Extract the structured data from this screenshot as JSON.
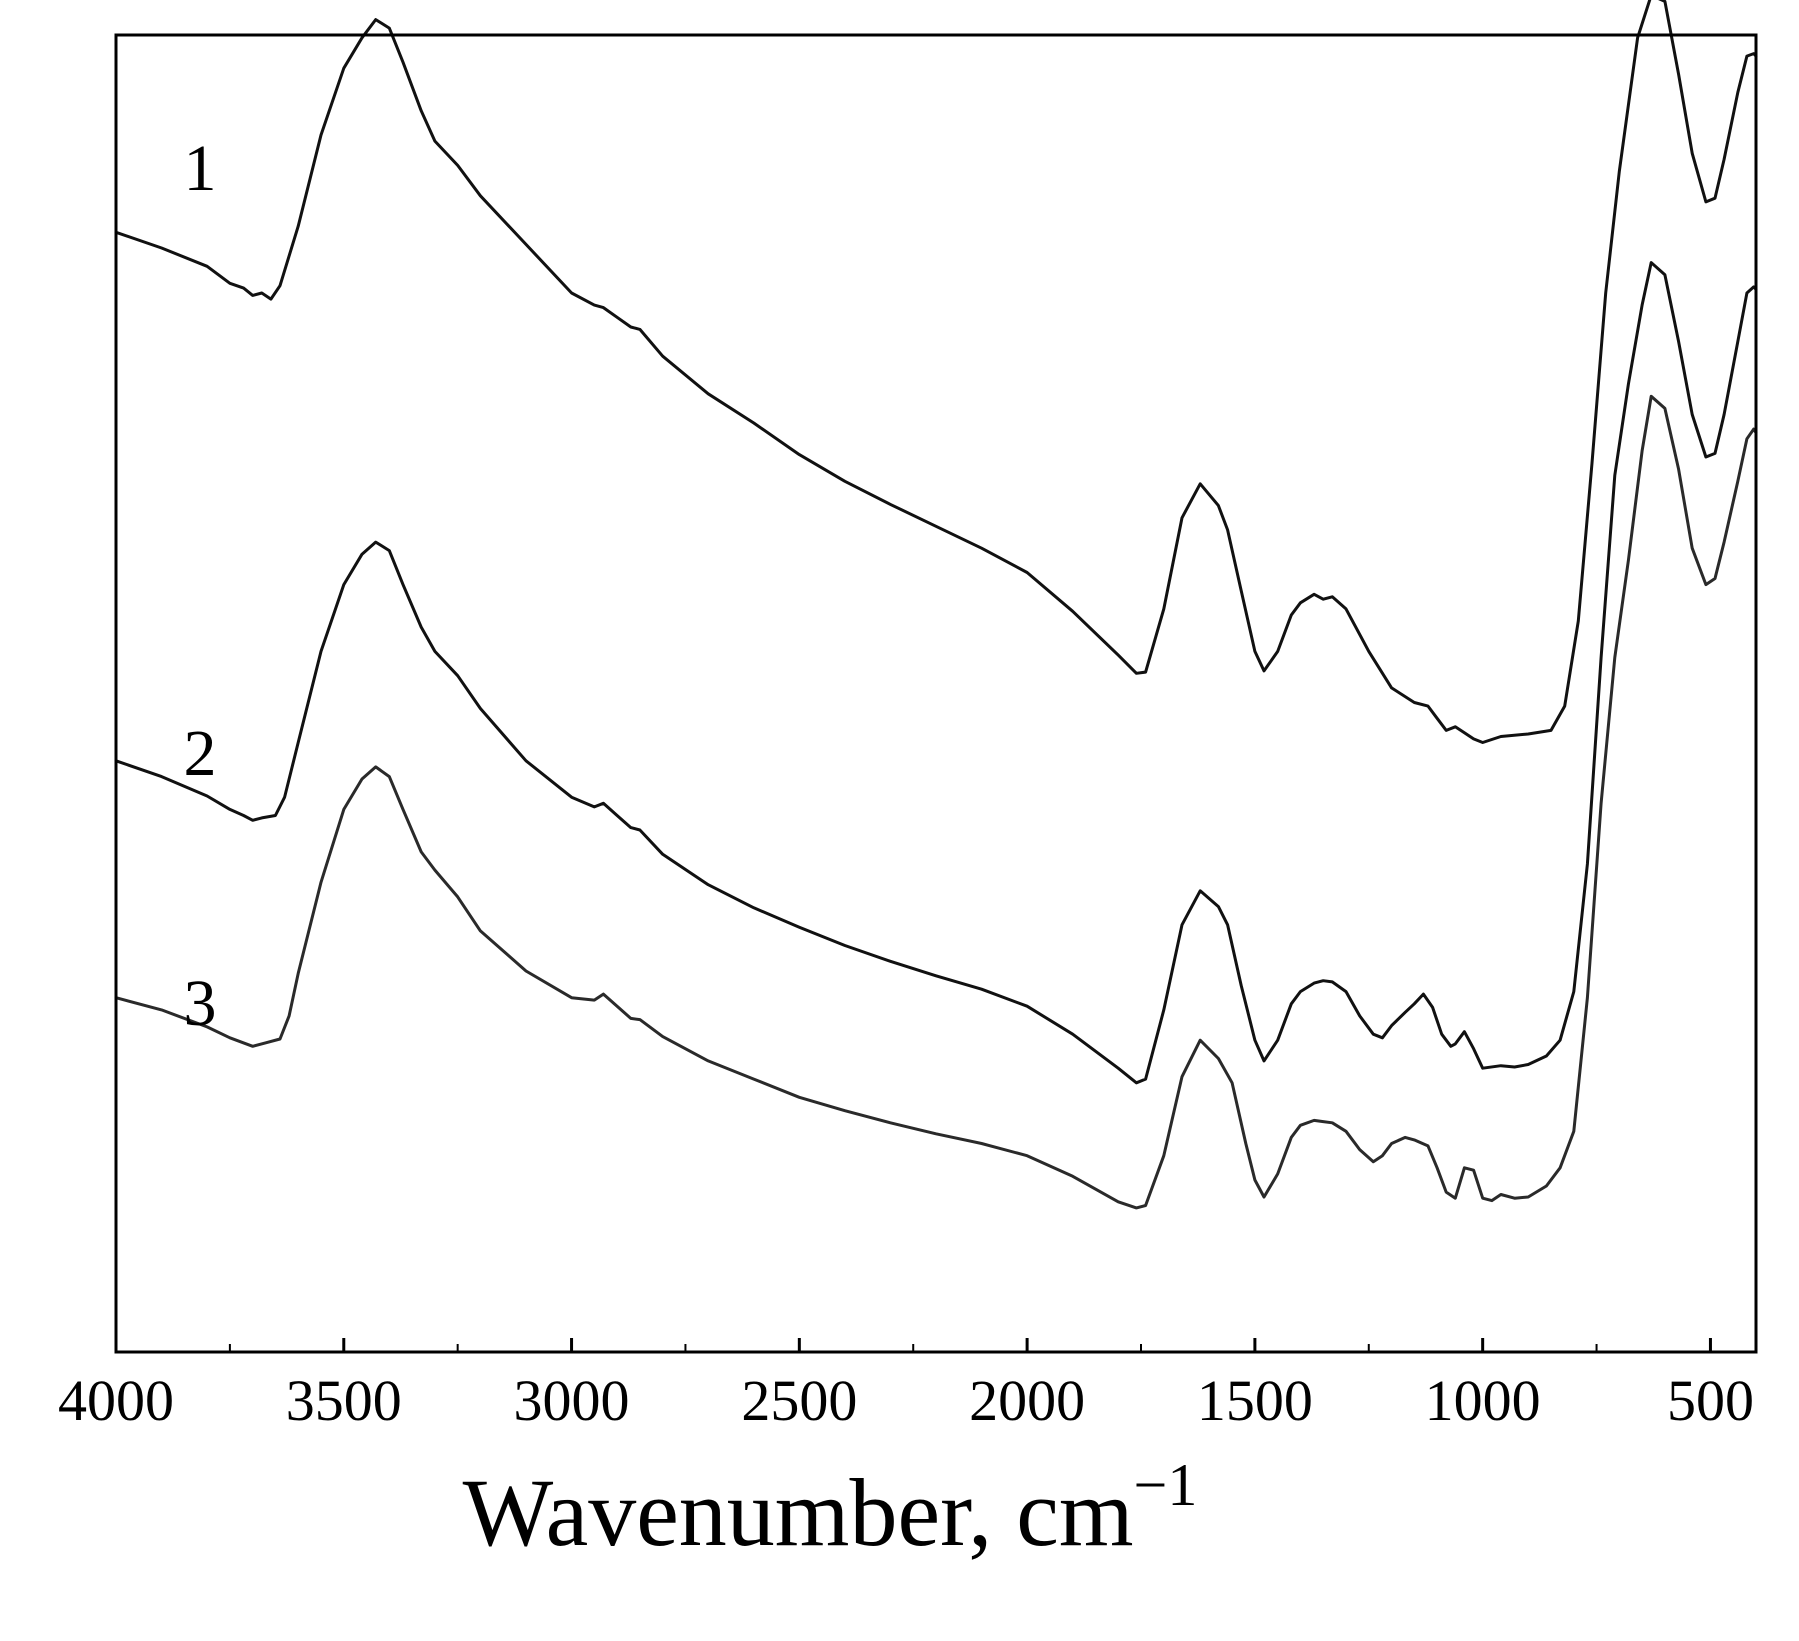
{
  "chart_data": {
    "type": "line",
    "xlabel": "Wavenumber, cm",
    "xlabel_superscript": "−1",
    "ylabel": "",
    "title": "",
    "xlim": [
      4000,
      400
    ],
    "x_reversed": true,
    "ylim": [
      0,
      100
    ],
    "x_ticks_major": [
      4000,
      3500,
      3000,
      2500,
      2000,
      1500,
      1000,
      500
    ],
    "x_tick_labels": [
      "4000",
      "3500",
      "3000",
      "2500",
      "2000",
      "1500",
      "1000",
      "500"
    ],
    "x_ticks_minor": [
      3750,
      3250,
      2750,
      2250,
      1750,
      1250,
      750
    ],
    "y_ticks": [],
    "grid": false,
    "legend": "none",
    "series": [
      {
        "label": "1",
        "color": "#111111",
        "points": [
          [
            4000,
            85.0
          ],
          [
            3900,
            83.7
          ],
          [
            3800,
            82.2
          ],
          [
            3750,
            80.8
          ],
          [
            3720,
            80.4
          ],
          [
            3700,
            79.8
          ],
          [
            3680,
            80.0
          ],
          [
            3660,
            79.5
          ],
          [
            3640,
            80.6
          ],
          [
            3600,
            85.5
          ],
          [
            3550,
            93.0
          ],
          [
            3500,
            98.5
          ],
          [
            3460,
            101.0
          ],
          [
            3430,
            102.5
          ],
          [
            3400,
            101.8
          ],
          [
            3370,
            99.0
          ],
          [
            3330,
            95.0
          ],
          [
            3300,
            92.5
          ],
          [
            3250,
            90.5
          ],
          [
            3200,
            88.0
          ],
          [
            3100,
            84.0
          ],
          [
            3000,
            80.0
          ],
          [
            2950,
            79.0
          ],
          [
            2930,
            78.8
          ],
          [
            2900,
            78.0
          ],
          [
            2870,
            77.2
          ],
          [
            2850,
            77.0
          ],
          [
            2800,
            74.8
          ],
          [
            2700,
            71.7
          ],
          [
            2600,
            69.3
          ],
          [
            2500,
            66.7
          ],
          [
            2400,
            64.5
          ],
          [
            2300,
            62.6
          ],
          [
            2200,
            60.8
          ],
          [
            2100,
            59.0
          ],
          [
            2000,
            57.0
          ],
          [
            1900,
            53.8
          ],
          [
            1800,
            50.2
          ],
          [
            1760,
            48.7
          ],
          [
            1740,
            48.8
          ],
          [
            1700,
            54.0
          ],
          [
            1660,
            61.5
          ],
          [
            1620,
            64.3
          ],
          [
            1580,
            62.5
          ],
          [
            1560,
            60.5
          ],
          [
            1530,
            55.5
          ],
          [
            1500,
            50.5
          ],
          [
            1480,
            48.9
          ],
          [
            1450,
            50.5
          ],
          [
            1420,
            53.5
          ],
          [
            1400,
            54.5
          ],
          [
            1370,
            55.2
          ],
          [
            1350,
            54.8
          ],
          [
            1330,
            55.0
          ],
          [
            1300,
            54.0
          ],
          [
            1250,
            50.5
          ],
          [
            1200,
            47.5
          ],
          [
            1150,
            46.3
          ],
          [
            1120,
            46.0
          ],
          [
            1100,
            45.0
          ],
          [
            1080,
            44.0
          ],
          [
            1060,
            44.3
          ],
          [
            1040,
            43.8
          ],
          [
            1020,
            43.3
          ],
          [
            1000,
            43.0
          ],
          [
            960,
            43.5
          ],
          [
            900,
            43.7
          ],
          [
            850,
            44.0
          ],
          [
            820,
            46.0
          ],
          [
            790,
            53.0
          ],
          [
            760,
            66.0
          ],
          [
            730,
            80.0
          ],
          [
            700,
            90.0
          ],
          [
            660,
            101.0
          ],
          [
            630,
            104.5
          ],
          [
            600,
            104.0
          ],
          [
            570,
            98.0
          ],
          [
            540,
            91.5
          ],
          [
            510,
            87.5
          ],
          [
            490,
            87.8
          ],
          [
            470,
            91.0
          ],
          [
            440,
            96.5
          ],
          [
            420,
            99.5
          ],
          [
            405,
            99.7
          ],
          [
            400,
            99.5
          ]
        ]
      },
      {
        "label": "2",
        "color": "#111111",
        "points": [
          [
            4000,
            41.5
          ],
          [
            3900,
            40.2
          ],
          [
            3800,
            38.6
          ],
          [
            3750,
            37.5
          ],
          [
            3720,
            37.0
          ],
          [
            3700,
            36.6
          ],
          [
            3680,
            36.8
          ],
          [
            3650,
            37.0
          ],
          [
            3630,
            38.5
          ],
          [
            3600,
            43.0
          ],
          [
            3550,
            50.5
          ],
          [
            3500,
            56.0
          ],
          [
            3460,
            58.5
          ],
          [
            3430,
            59.5
          ],
          [
            3400,
            58.8
          ],
          [
            3370,
            56.0
          ],
          [
            3330,
            52.5
          ],
          [
            3300,
            50.5
          ],
          [
            3250,
            48.5
          ],
          [
            3200,
            45.8
          ],
          [
            3100,
            41.5
          ],
          [
            3000,
            38.5
          ],
          [
            2950,
            37.7
          ],
          [
            2930,
            38.0
          ],
          [
            2900,
            37.0
          ],
          [
            2870,
            36.0
          ],
          [
            2850,
            35.8
          ],
          [
            2800,
            33.8
          ],
          [
            2700,
            31.3
          ],
          [
            2600,
            29.4
          ],
          [
            2500,
            27.8
          ],
          [
            2400,
            26.3
          ],
          [
            2300,
            25.0
          ],
          [
            2200,
            23.8
          ],
          [
            2100,
            22.7
          ],
          [
            2000,
            21.3
          ],
          [
            1900,
            19.0
          ],
          [
            1800,
            16.2
          ],
          [
            1760,
            15.0
          ],
          [
            1740,
            15.3
          ],
          [
            1700,
            21.0
          ],
          [
            1660,
            28.0
          ],
          [
            1620,
            30.8
          ],
          [
            1580,
            29.5
          ],
          [
            1560,
            28.0
          ],
          [
            1530,
            23.0
          ],
          [
            1500,
            18.5
          ],
          [
            1480,
            16.8
          ],
          [
            1450,
            18.5
          ],
          [
            1420,
            21.5
          ],
          [
            1400,
            22.5
          ],
          [
            1370,
            23.2
          ],
          [
            1350,
            23.4
          ],
          [
            1330,
            23.3
          ],
          [
            1300,
            22.5
          ],
          [
            1270,
            20.5
          ],
          [
            1240,
            19.0
          ],
          [
            1220,
            18.7
          ],
          [
            1200,
            19.7
          ],
          [
            1170,
            20.8
          ],
          [
            1150,
            21.5
          ],
          [
            1130,
            22.3
          ],
          [
            1110,
            21.2
          ],
          [
            1090,
            19.0
          ],
          [
            1070,
            18.0
          ],
          [
            1060,
            18.2
          ],
          [
            1040,
            19.2
          ],
          [
            1020,
            17.8
          ],
          [
            1000,
            16.2
          ],
          [
            960,
            16.4
          ],
          [
            930,
            16.3
          ],
          [
            900,
            16.5
          ],
          [
            860,
            17.2
          ],
          [
            830,
            18.5
          ],
          [
            800,
            22.5
          ],
          [
            770,
            33.0
          ],
          [
            740,
            50.0
          ],
          [
            710,
            65.0
          ],
          [
            680,
            72.5
          ],
          [
            650,
            79.0
          ],
          [
            630,
            82.5
          ],
          [
            600,
            81.5
          ],
          [
            570,
            76.0
          ],
          [
            540,
            70.0
          ],
          [
            510,
            66.5
          ],
          [
            490,
            66.8
          ],
          [
            470,
            70.0
          ],
          [
            440,
            76.0
          ],
          [
            420,
            80.0
          ],
          [
            405,
            80.5
          ],
          [
            400,
            80.3
          ]
        ]
      },
      {
        "label": "3",
        "color": "#2a2a2a",
        "points": [
          [
            4000,
            22.0
          ],
          [
            3900,
            21.0
          ],
          [
            3800,
            19.6
          ],
          [
            3750,
            18.7
          ],
          [
            3700,
            18.0
          ],
          [
            3670,
            18.3
          ],
          [
            3640,
            18.6
          ],
          [
            3620,
            20.5
          ],
          [
            3600,
            24.0
          ],
          [
            3550,
            31.5
          ],
          [
            3500,
            37.5
          ],
          [
            3460,
            40.0
          ],
          [
            3430,
            41.0
          ],
          [
            3400,
            40.2
          ],
          [
            3370,
            37.5
          ],
          [
            3330,
            34.0
          ],
          [
            3300,
            32.5
          ],
          [
            3250,
            30.3
          ],
          [
            3200,
            27.5
          ],
          [
            3100,
            24.2
          ],
          [
            3000,
            22.0
          ],
          [
            2950,
            21.8
          ],
          [
            2930,
            22.3
          ],
          [
            2900,
            21.3
          ],
          [
            2870,
            20.3
          ],
          [
            2850,
            20.2
          ],
          [
            2800,
            18.8
          ],
          [
            2700,
            16.8
          ],
          [
            2600,
            15.3
          ],
          [
            2500,
            13.8
          ],
          [
            2400,
            12.7
          ],
          [
            2300,
            11.7
          ],
          [
            2200,
            10.8
          ],
          [
            2100,
            10.0
          ],
          [
            2000,
            9.0
          ],
          [
            1900,
            7.3
          ],
          [
            1800,
            5.2
          ],
          [
            1760,
            4.7
          ],
          [
            1740,
            4.9
          ],
          [
            1700,
            9.0
          ],
          [
            1660,
            15.5
          ],
          [
            1620,
            18.5
          ],
          [
            1580,
            17.0
          ],
          [
            1550,
            15.0
          ],
          [
            1520,
            10.0
          ],
          [
            1500,
            7.0
          ],
          [
            1480,
            5.6
          ],
          [
            1450,
            7.5
          ],
          [
            1420,
            10.5
          ],
          [
            1400,
            11.5
          ],
          [
            1370,
            11.9
          ],
          [
            1350,
            11.8
          ],
          [
            1330,
            11.7
          ],
          [
            1300,
            11.0
          ],
          [
            1270,
            9.5
          ],
          [
            1240,
            8.5
          ],
          [
            1220,
            9.0
          ],
          [
            1200,
            10.0
          ],
          [
            1170,
            10.5
          ],
          [
            1150,
            10.3
          ],
          [
            1120,
            9.8
          ],
          [
            1100,
            8.0
          ],
          [
            1080,
            6.0
          ],
          [
            1060,
            5.5
          ],
          [
            1040,
            8.0
          ],
          [
            1020,
            7.8
          ],
          [
            1000,
            5.5
          ],
          [
            980,
            5.3
          ],
          [
            960,
            5.8
          ],
          [
            930,
            5.5
          ],
          [
            900,
            5.6
          ],
          [
            860,
            6.5
          ],
          [
            830,
            8.0
          ],
          [
            800,
            11.0
          ],
          [
            770,
            22.0
          ],
          [
            740,
            38.0
          ],
          [
            710,
            50.0
          ],
          [
            680,
            58.0
          ],
          [
            650,
            67.0
          ],
          [
            630,
            71.5
          ],
          [
            600,
            70.5
          ],
          [
            570,
            65.5
          ],
          [
            540,
            59.0
          ],
          [
            510,
            56.0
          ],
          [
            490,
            56.5
          ],
          [
            470,
            59.5
          ],
          [
            440,
            64.5
          ],
          [
            420,
            68.0
          ],
          [
            405,
            68.8
          ],
          [
            400,
            68.5
          ]
        ]
      }
    ]
  }
}
